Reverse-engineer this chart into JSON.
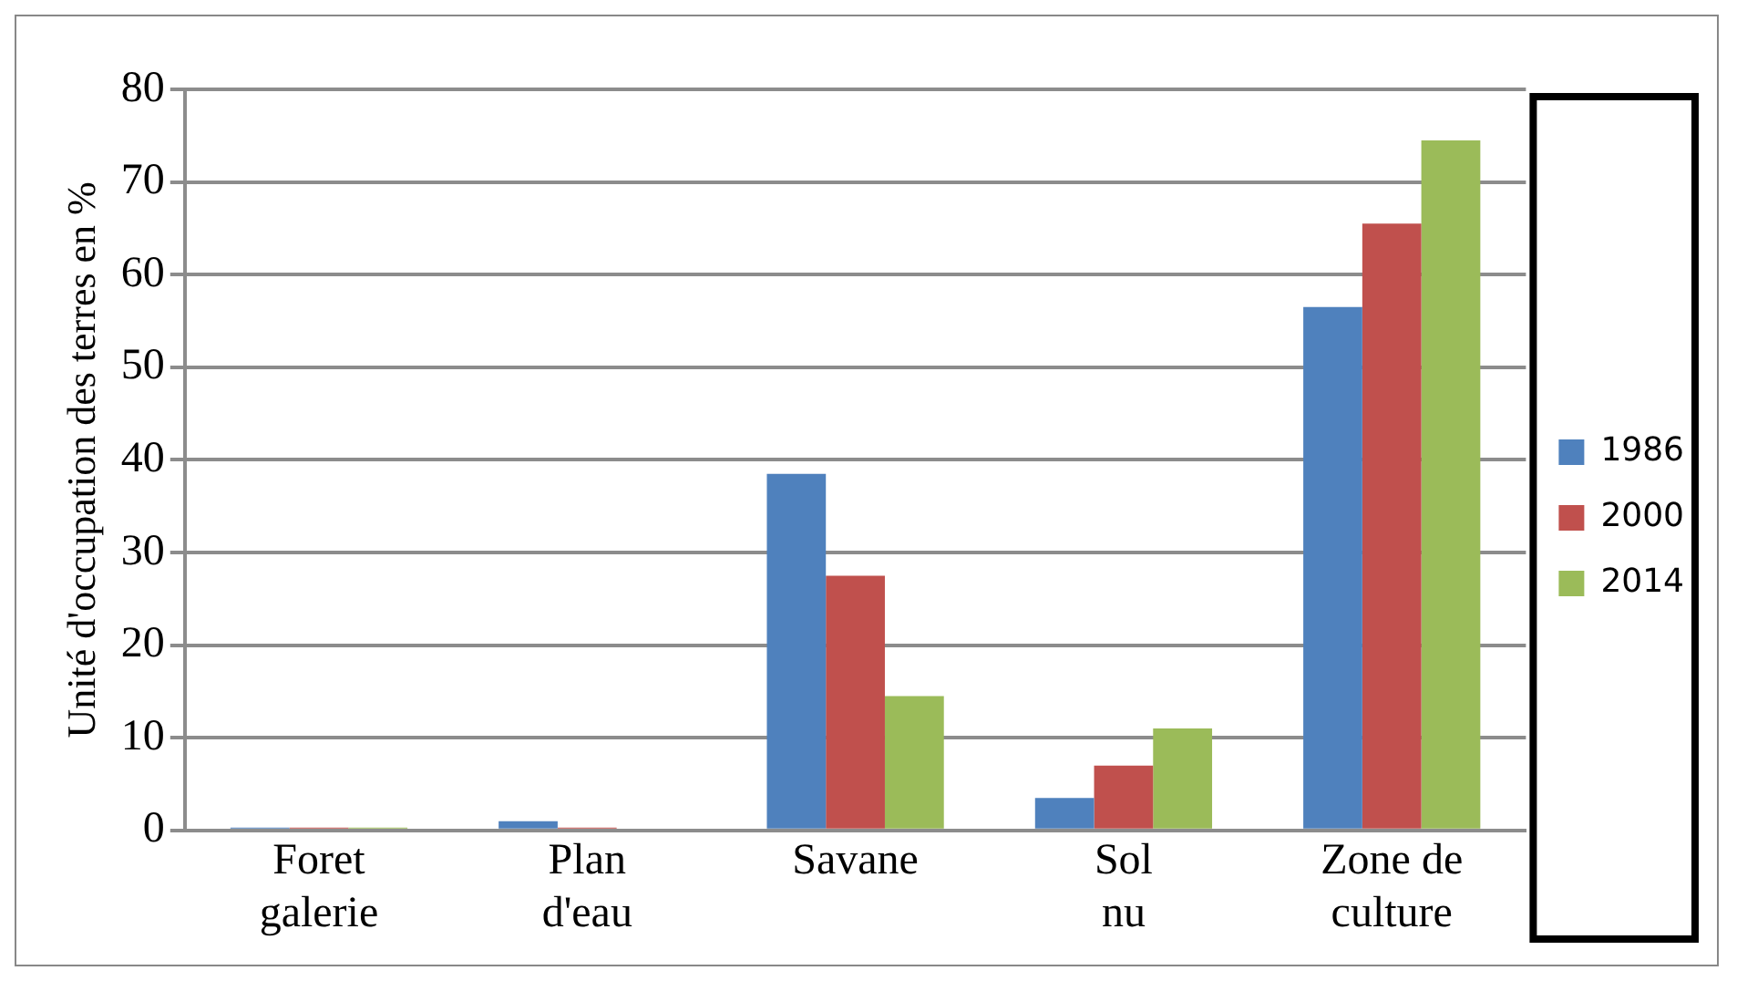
{
  "chart_data": {
    "type": "bar",
    "ylabel": "Unité d'occupation des terres en %",
    "categories": [
      "Foret galerie",
      "Plan d'eau",
      "Savane",
      "Sol nu",
      "Zone de culture"
    ],
    "series": [
      {
        "name": "1986",
        "color": "#4f81bd",
        "values": [
          0.3,
          1,
          38.5,
          3.5,
          56.5
        ]
      },
      {
        "name": "2000",
        "color": "#c0504d",
        "values": [
          0.3,
          0.3,
          27.5,
          7,
          65.5
        ]
      },
      {
        "name": "2014",
        "color": "#9bbb59",
        "values": [
          0.3,
          0.2,
          14.5,
          11,
          74.5
        ]
      }
    ],
    "ylim": [
      0,
      80
    ],
    "yticks": [
      0,
      10,
      20,
      30,
      40,
      50,
      60,
      70,
      80
    ],
    "grid": "y",
    "legend": "right"
  }
}
